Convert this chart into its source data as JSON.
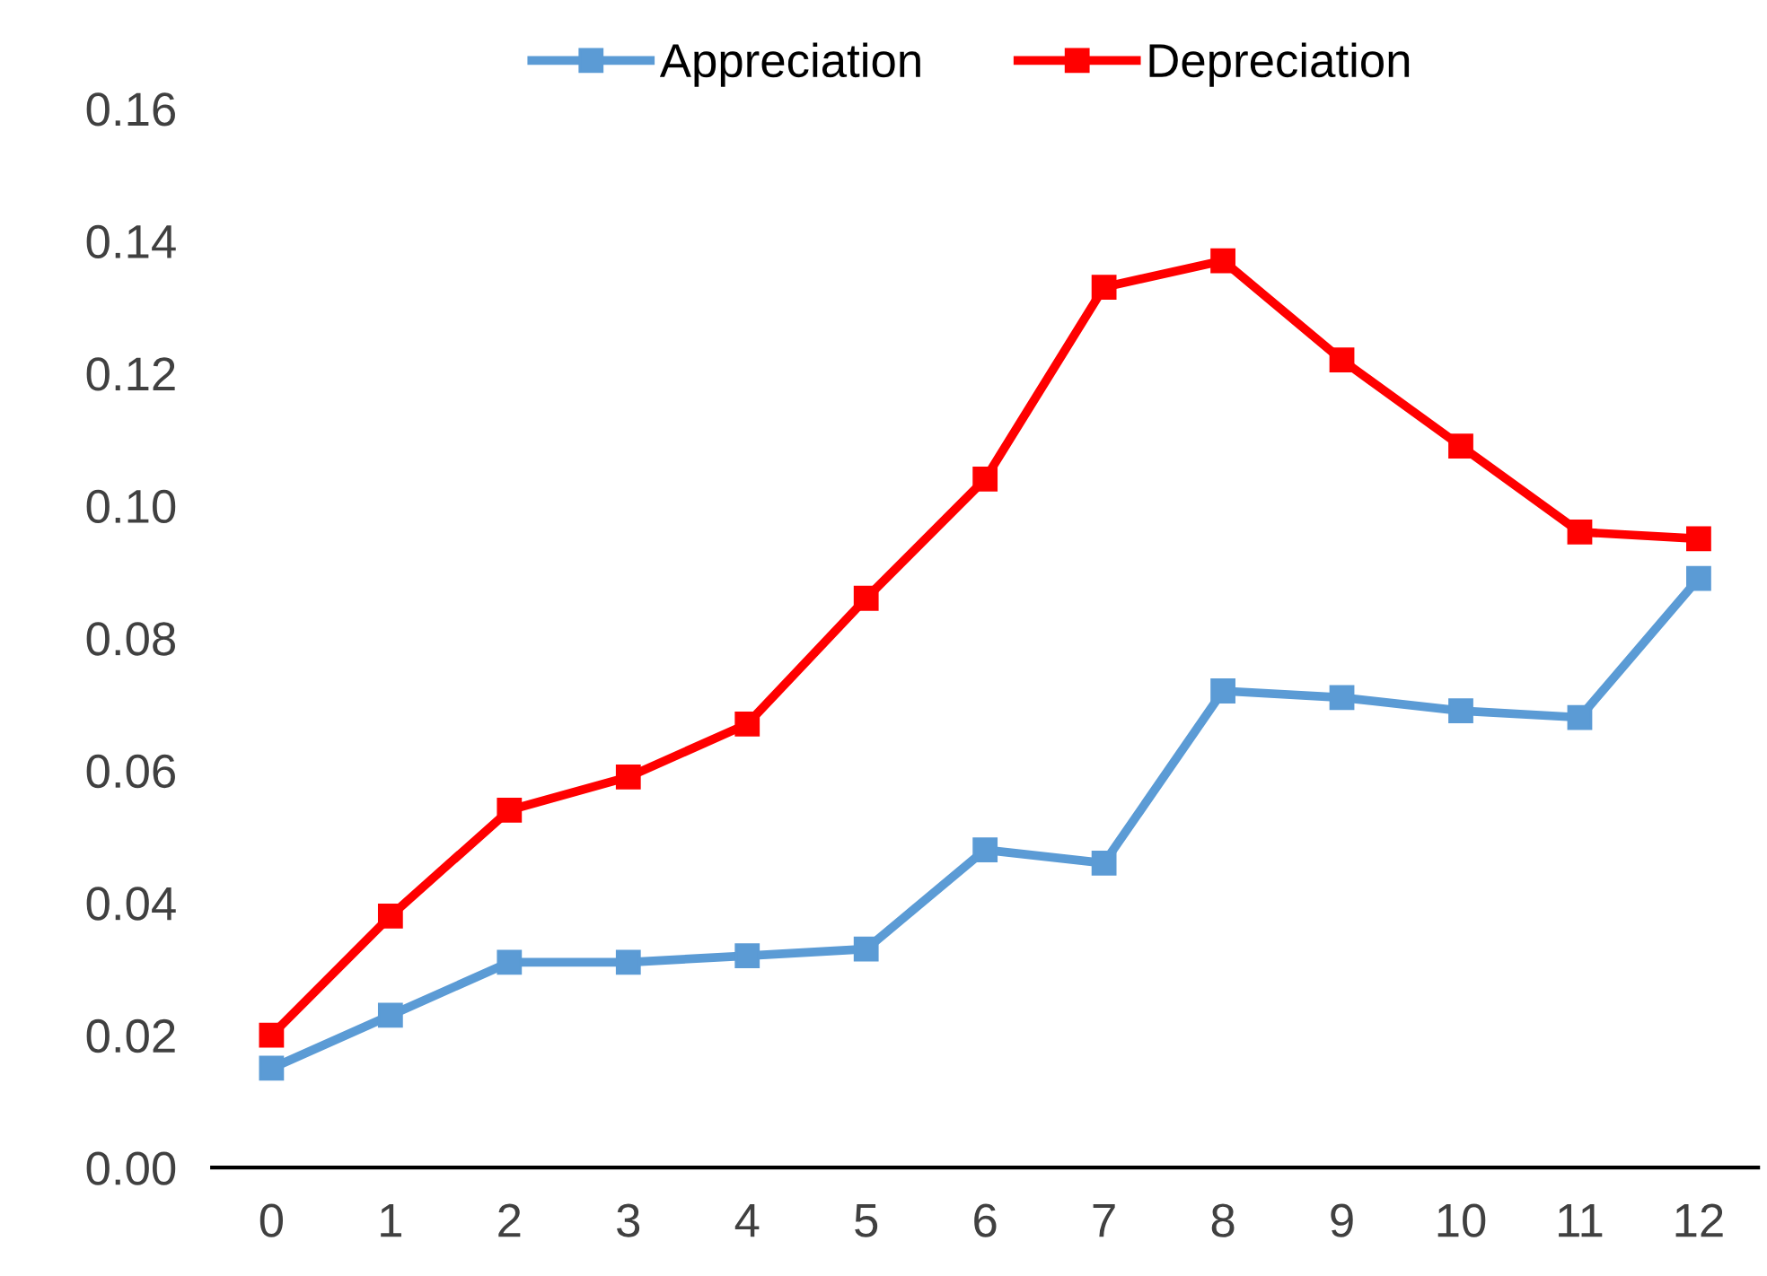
{
  "chart_data": {
    "type": "line",
    "categories": [
      "0",
      "1",
      "2",
      "3",
      "4",
      "5",
      "6",
      "7",
      "8",
      "9",
      "10",
      "11",
      "12"
    ],
    "series": [
      {
        "name": "Appreciation",
        "color": "#5b9bd5",
        "values": [
          0.015,
          0.023,
          0.031,
          0.031,
          0.032,
          0.033,
          0.048,
          0.046,
          0.072,
          0.071,
          0.069,
          0.068,
          0.089
        ]
      },
      {
        "name": "Depreciation",
        "color": "#ff0000",
        "values": [
          0.02,
          0.038,
          0.054,
          0.059,
          0.067,
          0.086,
          0.104,
          0.133,
          0.137,
          0.122,
          0.109,
          0.096,
          0.095
        ]
      }
    ],
    "ylim": [
      0,
      0.16
    ],
    "yticks": [
      {
        "value": 0,
        "label": "0.00"
      },
      {
        "value": 0.02,
        "label": "0.02"
      },
      {
        "value": 0.04,
        "label": "0.04"
      },
      {
        "value": 0.06,
        "label": "0.06"
      },
      {
        "value": 0.08,
        "label": "0.08"
      },
      {
        "value": 0.1,
        "label": "0.10"
      },
      {
        "value": 0.12,
        "label": "0.12"
      },
      {
        "value": 0.14,
        "label": "0.14"
      },
      {
        "value": 0.16,
        "label": "0.16"
      }
    ],
    "grid": false,
    "legend": "top",
    "marker": "square",
    "line_style": "solid"
  }
}
